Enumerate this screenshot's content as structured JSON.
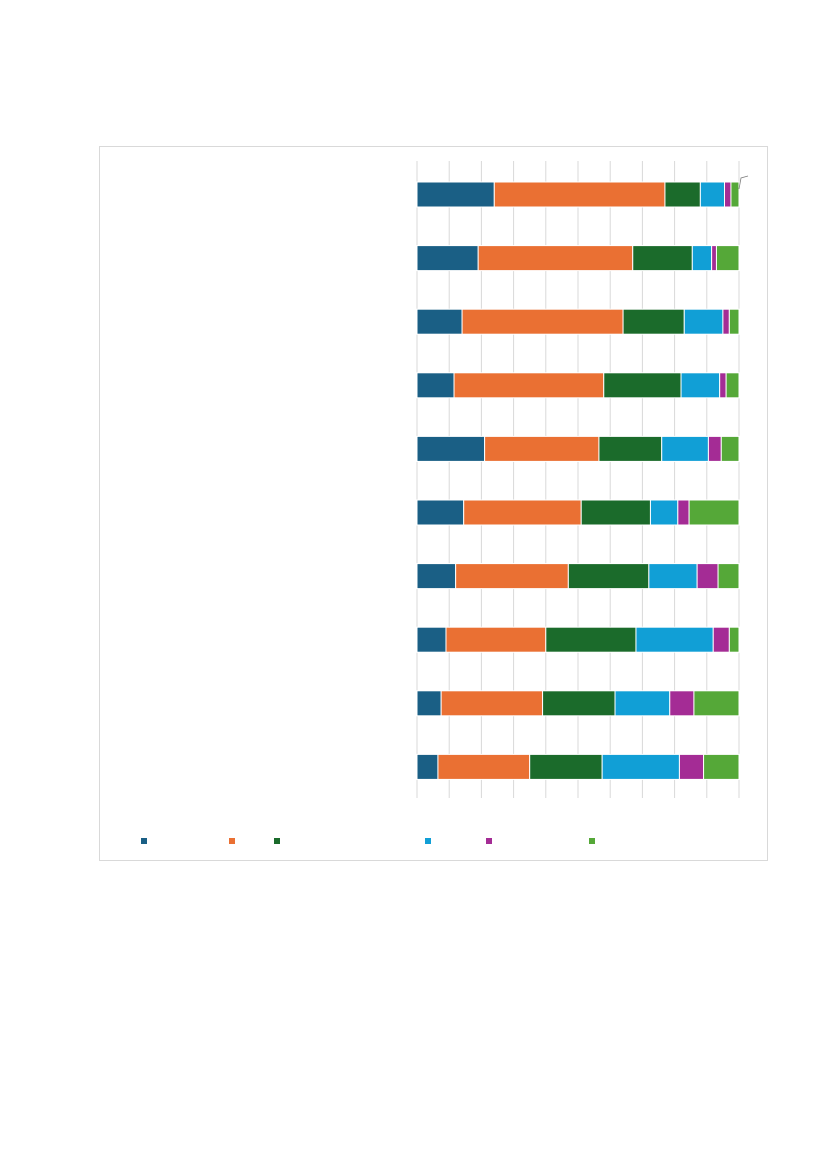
{
  "colors": {
    "page_background": "#ffffff",
    "frame_border": "#d9d9d9",
    "gridline": "#d9d9d9"
  },
  "chart_data": {
    "type": "bar",
    "orientation": "horizontal",
    "stacked": "percent",
    "title": "",
    "xlabel": "",
    "ylabel": "",
    "xlim": [
      0,
      100
    ],
    "grid": true,
    "legend_position": "bottom",
    "categories": [
      "",
      "",
      "",
      "",
      "",
      "",
      "",
      "",
      "",
      ""
    ],
    "series": [
      {
        "color": "#1a5f85",
        "values": [
          24,
          19,
          14,
          11.5,
          21,
          14.5,
          12,
          9,
          7.5,
          6.5
        ]
      },
      {
        "color": "#ea7033",
        "values": [
          53,
          48,
          50,
          46.5,
          35.5,
          36.5,
          35,
          31,
          31.5,
          28.5
        ]
      },
      {
        "color": "#1b6b2b",
        "values": [
          11,
          18.5,
          19,
          24,
          19.5,
          21.5,
          25,
          28,
          22.5,
          22.5
        ]
      },
      {
        "color": "#119fd6",
        "values": [
          7.5,
          6,
          12,
          12,
          14.5,
          8.5,
          15,
          24,
          17,
          24
        ]
      },
      {
        "color": "#a42c95",
        "values": [
          2,
          1.5,
          2,
          2,
          4,
          3.5,
          6.5,
          5,
          7.5,
          7.5
        ]
      },
      {
        "color": "#55a838",
        "values": [
          2.5,
          7,
          3,
          4,
          5.5,
          15.5,
          6.5,
          3,
          14,
          11
        ]
      }
    ],
    "legend": [
      {
        "label": "",
        "color": "#1a5f85"
      },
      {
        "label": "",
        "color": "#ea7033"
      },
      {
        "label": "",
        "color": "#1b6b2b"
      },
      {
        "label": "",
        "color": "#119fd6"
      },
      {
        "label": "",
        "color": "#a42c95"
      },
      {
        "label": "",
        "color": "#55a838"
      }
    ]
  }
}
